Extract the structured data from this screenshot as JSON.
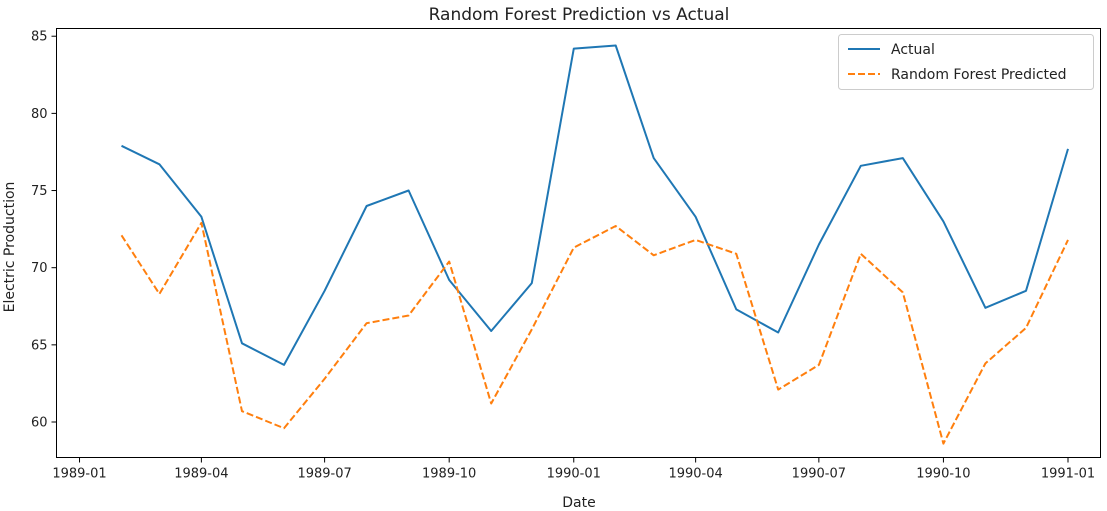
{
  "chart_data": {
    "type": "line",
    "title": "Random Forest Prediction vs Actual",
    "xlabel": "Date",
    "ylabel": "Electric Production",
    "x_ticks": [
      "1989-01",
      "1989-04",
      "1989-07",
      "1989-10",
      "1990-01",
      "1990-04",
      "1990-07",
      "1990-10",
      "1991-01"
    ],
    "y_ticks": [
      "60",
      "65",
      "70",
      "75",
      "80",
      "85"
    ],
    "xlim": [
      "1988-12-15",
      "1991-01-25"
    ],
    "ylim": [
      57.7,
      85.5
    ],
    "legend_position": "top-right",
    "grid": false,
    "x": [
      "1989-02-01",
      "1989-03-01",
      "1989-04-01",
      "1989-05-01",
      "1989-06-01",
      "1989-07-01",
      "1989-08-01",
      "1989-09-01",
      "1989-10-01",
      "1989-11-01",
      "1989-12-01",
      "1990-01-01",
      "1990-02-01",
      "1990-03-01",
      "1990-04-01",
      "1990-05-01",
      "1990-06-01",
      "1990-07-01",
      "1990-08-01",
      "1990-09-01",
      "1990-10-01",
      "1990-11-01",
      "1990-12-01",
      "1991-01-01"
    ],
    "series": [
      {
        "name": "Actual",
        "color": "#1f77b4",
        "style": "solid",
        "values": [
          77.9,
          76.7,
          73.3,
          65.1,
          63.7,
          68.5,
          74.0,
          75.0,
          69.2,
          65.9,
          69.0,
          84.2,
          84.4,
          77.1,
          73.3,
          67.3,
          65.8,
          71.5,
          76.6,
          77.1,
          73.0,
          67.4,
          68.5,
          77.7
        ]
      },
      {
        "name": "Random Forest Predicted",
        "color": "#ff7f0e",
        "style": "dashed",
        "values": [
          72.1,
          68.3,
          72.9,
          60.7,
          59.6,
          62.8,
          66.4,
          66.9,
          70.4,
          61.2,
          66.0,
          71.3,
          72.7,
          70.8,
          71.8,
          70.9,
          62.1,
          63.7,
          70.9,
          68.4,
          58.6,
          63.8,
          66.1,
          71.8
        ]
      }
    ]
  }
}
